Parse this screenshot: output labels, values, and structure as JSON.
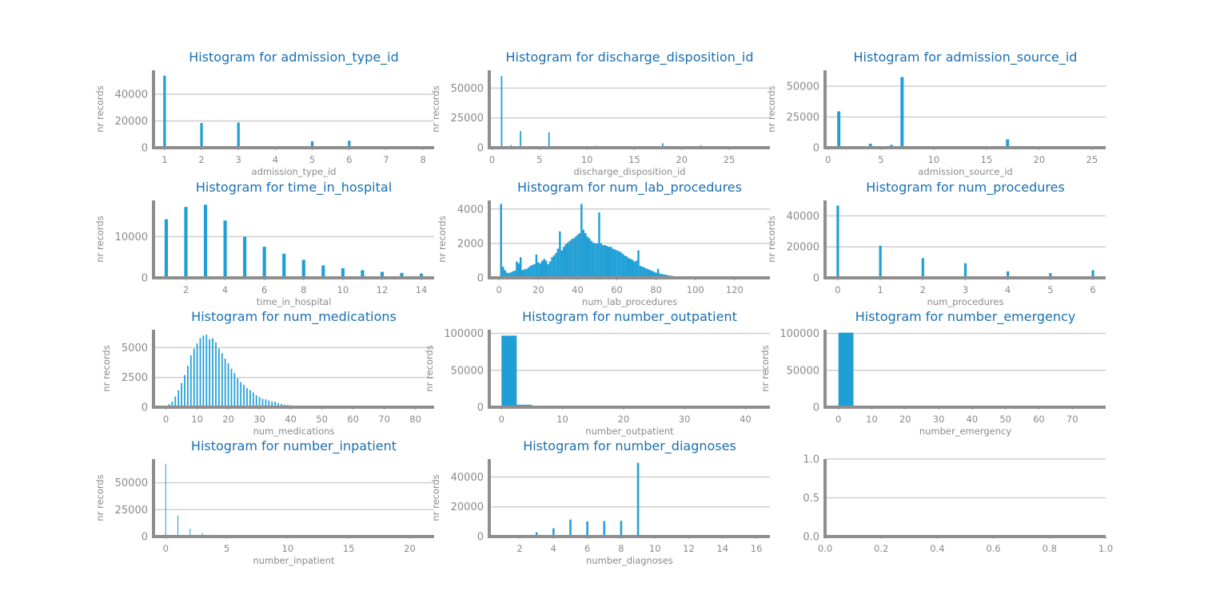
{
  "chart_data": [
    {
      "type": "bar",
      "title": "Histogram for admission_type_id",
      "xlabel": "admission_type_id",
      "ylabel": "nr records",
      "xlim": [
        0.7,
        8.3
      ],
      "ylim": [
        0,
        58000
      ],
      "xticks": [
        1,
        2,
        3,
        4,
        5,
        6,
        7,
        8
      ],
      "yticks": [
        0,
        20000,
        40000
      ],
      "bar_width": 0.07,
      "x": [
        1,
        2,
        3,
        4,
        5,
        6,
        7,
        8
      ],
      "values": [
        53990,
        18480,
        18869,
        10,
        4785,
        5291,
        21,
        320
      ]
    },
    {
      "type": "bar",
      "title": "Histogram for discharge_disposition_id",
      "xlabel": "discharge_disposition_id",
      "ylabel": "nr records",
      "xlim": [
        -0.3,
        29.3
      ],
      "ylim": [
        0,
        65000
      ],
      "xticks": [
        0,
        5,
        10,
        15,
        20,
        25
      ],
      "yticks": [
        0,
        25000,
        50000
      ],
      "bar_width": 0.15,
      "x": [
        1,
        2,
        3,
        4,
        5,
        6,
        7,
        8,
        9,
        10,
        11,
        12,
        13,
        14,
        15,
        16,
        17,
        18,
        19,
        20,
        22,
        23,
        24,
        25,
        27,
        28
      ],
      "values": [
        60234,
        2128,
        13954,
        815,
        1184,
        12902,
        623,
        108,
        21,
        6,
        1642,
        3,
        399,
        372,
        63,
        11,
        14,
        3691,
        8,
        2,
        1993,
        412,
        48,
        989,
        5,
        139
      ]
    },
    {
      "type": "bar",
      "title": "Histogram for admission_source_id",
      "xlabel": "admission_source_id",
      "ylabel": "nr records",
      "xlim": [
        -0.3,
        26.3
      ],
      "ylim": [
        0,
        63000
      ],
      "xticks": [
        0,
        5,
        10,
        15,
        20,
        25
      ],
      "yticks": [
        0,
        25000,
        50000
      ],
      "bar_width": 0.3,
      "x": [
        1,
        2,
        3,
        4,
        5,
        6,
        7,
        8,
        9,
        10,
        11,
        13,
        14,
        17,
        20,
        22,
        25
      ],
      "values": [
        29565,
        1104,
        187,
        3187,
        855,
        2264,
        57494,
        16,
        125,
        8,
        2,
        1,
        2,
        6781,
        161,
        12,
        2
      ]
    },
    {
      "type": "bar",
      "title": "Histogram for time_in_hospital",
      "xlabel": "time_in_hospital",
      "ylabel": "nr records",
      "xlim": [
        0.35,
        14.65
      ],
      "ylim": [
        0,
        18800
      ],
      "xticks": [
        2,
        4,
        6,
        8,
        10,
        12,
        14
      ],
      "yticks": [
        0,
        10000
      ],
      "bar_width": 0.17,
      "x": [
        1,
        2,
        3,
        4,
        5,
        6,
        7,
        8,
        9,
        10,
        11,
        12,
        13,
        14
      ],
      "values": [
        14208,
        17224,
        17756,
        13924,
        9966,
        7539,
        5859,
        4391,
        3002,
        2342,
        1855,
        1448,
        1210,
        1042
      ]
    },
    {
      "type": "bar",
      "title": "Histogram for num_lab_procedures",
      "xlabel": "num_lab_procedures",
      "ylabel": "nr records",
      "xlim": [
        -5,
        138
      ],
      "ylim": [
        0,
        4500
      ],
      "xticks": [
        0,
        20,
        40,
        60,
        80,
        100,
        120
      ],
      "yticks": [
        0,
        2000,
        4000
      ],
      "bar_width": 1.0,
      "x": [
        1,
        2,
        3,
        4,
        5,
        6,
        7,
        8,
        9,
        10,
        11,
        12,
        13,
        14,
        15,
        16,
        17,
        18,
        19,
        20,
        21,
        22,
        23,
        24,
        25,
        26,
        27,
        28,
        29,
        30,
        31,
        32,
        33,
        34,
        35,
        36,
        37,
        38,
        39,
        40,
        41,
        42,
        43,
        44,
        45,
        46,
        47,
        48,
        49,
        50,
        51,
        52,
        53,
        54,
        55,
        56,
        57,
        58,
        59,
        60,
        61,
        62,
        63,
        64,
        65,
        66,
        67,
        68,
        69,
        70,
        71,
        72,
        73,
        74,
        75,
        76,
        77,
        78,
        79,
        80,
        81,
        82,
        83,
        84,
        85,
        86,
        87,
        88,
        89,
        90,
        91,
        92,
        93,
        94,
        95,
        96,
        97,
        98,
        99,
        100,
        101,
        102,
        103,
        104,
        105,
        106,
        107,
        108,
        109,
        110,
        111,
        112,
        113,
        114,
        115,
        116,
        117,
        118,
        119,
        120,
        121,
        126,
        129,
        132
      ],
      "values": [
        4300,
        650,
        450,
        300,
        280,
        320,
        380,
        420,
        950,
        850,
        1200,
        450,
        500,
        520,
        600,
        700,
        750,
        800,
        1350,
        900,
        850,
        1000,
        1100,
        1000,
        800,
        950,
        1200,
        1300,
        1450,
        1700,
        2700,
        1600,
        1800,
        1950,
        2050,
        2150,
        2250,
        2300,
        2400,
        2500,
        2600,
        4300,
        2800,
        2600,
        2400,
        2300,
        2150,
        2050,
        2000,
        2000,
        3800,
        2000,
        1900,
        1900,
        1850,
        1800,
        1800,
        1700,
        1650,
        1600,
        1550,
        1500,
        1400,
        1300,
        1250,
        1150,
        1100,
        1050,
        950,
        1000,
        1600,
        700,
        650,
        600,
        550,
        500,
        450,
        400,
        350,
        300,
        520,
        250,
        220,
        200,
        180,
        150,
        130,
        120,
        100,
        90,
        80,
        60,
        50,
        45,
        40,
        35,
        30,
        25,
        20,
        18,
        15,
        12,
        10,
        9,
        8,
        7,
        6,
        5,
        5,
        4,
        4,
        3,
        3,
        2,
        2,
        2,
        2,
        1,
        1,
        1,
        1,
        1,
        1,
        1
      ]
    },
    {
      "type": "bar",
      "title": "Histogram for num_procedures",
      "xlabel": "num_procedures",
      "ylabel": "nr records",
      "xlim": [
        -0.3,
        6.3
      ],
      "ylim": [
        0,
        50000
      ],
      "xticks": [
        0,
        1,
        2,
        3,
        4,
        5,
        6
      ],
      "yticks": [
        0,
        20000,
        40000
      ],
      "bar_width": 0.06,
      "x": [
        0,
        1,
        2,
        3,
        4,
        5,
        6
      ],
      "values": [
        46652,
        20742,
        12717,
        9443,
        4180,
        3078,
        4954
      ]
    },
    {
      "type": "bar",
      "title": "Histogram for num_medications",
      "xlabel": "num_medications",
      "ylabel": "nr records",
      "xlim": [
        -4,
        86
      ],
      "ylim": [
        0,
        6500
      ],
      "xticks": [
        0,
        10,
        20,
        30,
        40,
        50,
        60,
        70,
        80
      ],
      "yticks": [
        0,
        2500,
        5000
      ],
      "bar_width": 0.45,
      "x": [
        1,
        2,
        3,
        4,
        5,
        6,
        7,
        8,
        9,
        10,
        11,
        12,
        13,
        14,
        15,
        16,
        17,
        18,
        19,
        20,
        21,
        22,
        23,
        24,
        25,
        26,
        27,
        28,
        29,
        30,
        31,
        32,
        33,
        34,
        35,
        36,
        37,
        38,
        39,
        40,
        41,
        42,
        43,
        44,
        45,
        46,
        47,
        48,
        49,
        50,
        51,
        52,
        53,
        54,
        55,
        56,
        57,
        58,
        59,
        60,
        61,
        62,
        63,
        64,
        65,
        66,
        67,
        68,
        69,
        70,
        72,
        74,
        75,
        79,
        81
      ],
      "values": [
        262,
        470,
        900,
        1417,
        2017,
        2699,
        3484,
        4353,
        4913,
        5346,
        5795,
        6004,
        6086,
        5707,
        5792,
        5430,
        4919,
        4523,
        4078,
        3691,
        3230,
        2868,
        2426,
        2109,
        1888,
        1608,
        1432,
        1233,
        1000,
        849,
        712,
        659,
        564,
        476,
        467,
        351,
        270,
        206,
        192,
        160,
        122,
        117,
        96,
        76,
        60,
        51,
        49,
        43,
        33,
        29,
        27,
        22,
        17,
        15,
        15,
        10,
        9,
        8,
        6,
        6,
        6,
        5,
        5,
        4,
        4,
        3,
        3,
        2,
        2,
        2,
        1,
        1,
        1,
        1,
        1
      ]
    },
    {
      "type": "bar",
      "title": "Histogram for number_outpatient",
      "xlabel": "number_outpatient",
      "ylabel": "nr records",
      "xlim": [
        -2,
        44
      ],
      "ylim": [
        0,
        105000
      ],
      "xticks": [
        0,
        10,
        20,
        30,
        40
      ],
      "yticks": [
        0,
        50000,
        100000
      ],
      "bins": [
        {
          "x0": 0,
          "x1": 2.5,
          "value": 97000
        },
        {
          "x0": 2.5,
          "x1": 5,
          "value": 3300
        },
        {
          "x0": 5,
          "x1": 7.5,
          "value": 700
        },
        {
          "x0": 7.5,
          "x1": 10,
          "value": 350
        },
        {
          "x0": 10,
          "x1": 12.5,
          "value": 180
        },
        {
          "x0": 12.5,
          "x1": 15,
          "value": 100
        },
        {
          "x0": 15,
          "x1": 17.5,
          "value": 60
        },
        {
          "x0": 17.5,
          "x1": 20,
          "value": 40
        },
        {
          "x0": 20,
          "x1": 22.5,
          "value": 30
        },
        {
          "x0": 22.5,
          "x1": 25,
          "value": 20
        },
        {
          "x0": 25,
          "x1": 27.5,
          "value": 15
        },
        {
          "x0": 27.5,
          "x1": 30,
          "value": 10
        },
        {
          "x0": 30,
          "x1": 32.5,
          "value": 8
        },
        {
          "x0": 32.5,
          "x1": 35,
          "value": 6
        },
        {
          "x0": 35,
          "x1": 37.5,
          "value": 5
        },
        {
          "x0": 37.5,
          "x1": 40,
          "value": 3
        },
        {
          "x0": 40,
          "x1": 42.5,
          "value": 2
        }
      ]
    },
    {
      "type": "bar",
      "title": "Histogram for number_emergency",
      "xlabel": "number_emergency",
      "ylabel": "nr records",
      "xlim": [
        -4,
        80
      ],
      "ylim": [
        0,
        105000
      ],
      "xticks": [
        0,
        10,
        20,
        30,
        40,
        50,
        60,
        70
      ],
      "yticks": [
        0,
        50000,
        100000
      ],
      "bins": [
        {
          "x0": 0,
          "x1": 4.5,
          "value": 101000
        },
        {
          "x0": 4.5,
          "x1": 9,
          "value": 500
        },
        {
          "x0": 9,
          "x1": 13.5,
          "value": 100
        },
        {
          "x0": 13.5,
          "x1": 18,
          "value": 40
        },
        {
          "x0": 18,
          "x1": 22.5,
          "value": 20
        },
        {
          "x0": 22.5,
          "x1": 27,
          "value": 10
        },
        {
          "x0": 27,
          "x1": 31.5,
          "value": 5
        },
        {
          "x0": 31.5,
          "x1": 36,
          "value": 3
        },
        {
          "x0": 36,
          "x1": 40.5,
          "value": 2
        },
        {
          "x0": 40.5,
          "x1": 45,
          "value": 2
        },
        {
          "x0": 45,
          "x1": 49.5,
          "value": 1
        },
        {
          "x0": 49.5,
          "x1": 54,
          "value": 1
        },
        {
          "x0": 54,
          "x1": 58.5,
          "value": 1
        },
        {
          "x0": 58.5,
          "x1": 63,
          "value": 1
        },
        {
          "x0": 63,
          "x1": 67.5,
          "value": 1
        },
        {
          "x0": 72,
          "x1": 76.5,
          "value": 1
        }
      ]
    },
    {
      "type": "bar",
      "title": "Histogram for number_inpatient",
      "xlabel": "number_inpatient",
      "ylabel": "nr records",
      "xlim": [
        -1,
        22
      ],
      "ylim": [
        0,
        72000
      ],
      "xticks": [
        0,
        5,
        10,
        15,
        20
      ],
      "yticks": [
        0,
        25000,
        50000
      ],
      "bar_width": 0.05,
      "x": [
        0,
        1,
        2,
        3,
        4,
        5,
        6,
        7,
        8,
        9,
        10,
        11,
        12,
        13,
        14,
        15,
        16,
        17,
        18,
        19,
        21
      ],
      "values": [
        67630,
        19521,
        7566,
        3411,
        1622,
        812,
        480,
        268,
        151,
        111,
        61,
        49,
        34,
        20,
        10,
        9,
        6,
        1,
        1,
        2,
        1
      ]
    },
    {
      "type": "bar",
      "title": "Histogram for number_diagnoses",
      "xlabel": "number_diagnoses",
      "ylabel": "nr records",
      "xlim": [
        0.2,
        16.8
      ],
      "ylim": [
        0,
        52000
      ],
      "xticks": [
        2,
        4,
        6,
        8,
        10,
        12,
        14,
        16
      ],
      "yticks": [
        0,
        20000,
        40000
      ],
      "bar_width": 0.12,
      "x": [
        1,
        2,
        3,
        4,
        5,
        6,
        7,
        8,
        9,
        10,
        11,
        12,
        13,
        14,
        15,
        16
      ],
      "values": [
        219,
        1023,
        2835,
        5537,
        11393,
        10161,
        10393,
        10616,
        49474,
        17,
        11,
        9,
        16,
        7,
        10,
        45
      ]
    },
    {
      "type": "bar",
      "title": "",
      "xlabel": "",
      "ylabel": "",
      "xlim": [
        0,
        1
      ],
      "ylim": [
        0,
        1
      ],
      "xticks": [
        "0.0",
        "0.2",
        "0.4",
        "0.6",
        "0.8",
        "1.0"
      ],
      "yticks": [
        "0.0",
        "0.5",
        "1.0"
      ],
      "values": []
    }
  ]
}
